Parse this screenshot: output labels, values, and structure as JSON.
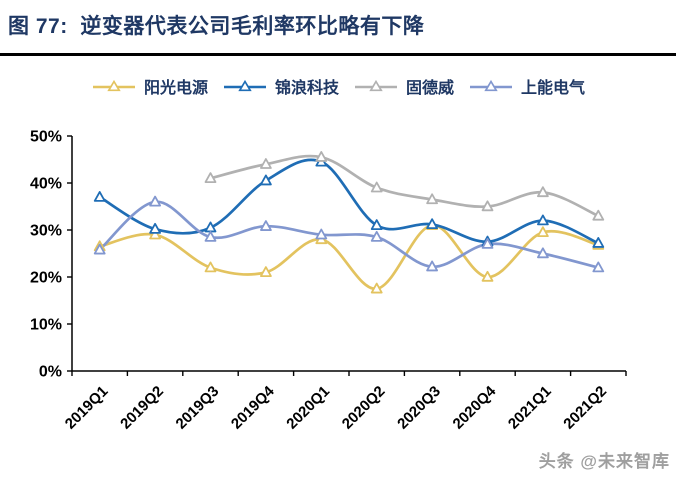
{
  "header": {
    "title": "图 77:  逆变器代表公司毛利率环比略有下降"
  },
  "watermark": "头条 @未来智库",
  "chart_data": {
    "type": "line",
    "title": "逆变器代表公司毛利率环比略有下降",
    "categories": [
      "2019Q1",
      "2019Q2",
      "2019Q3",
      "2019Q4",
      "2020Q1",
      "2020Q2",
      "2020Q3",
      "2020Q4",
      "2021Q1",
      "2021Q2"
    ],
    "series": [
      {
        "name": "阳光电源",
        "color": "#e3c35f",
        "values": [
          26.5,
          29,
          22,
          21,
          28,
          17.5,
          31,
          20,
          29.5,
          26.8
        ]
      },
      {
        "name": "锦浪科技",
        "color": "#1f6db5",
        "values": [
          37,
          30.2,
          30.5,
          40.5,
          44.5,
          31,
          31.2,
          27.5,
          32,
          27.2
        ]
      },
      {
        "name": "固德威",
        "color": "#b1b1b1",
        "values": [
          null,
          null,
          41,
          44,
          45.5,
          39,
          36.5,
          35,
          38,
          33
        ]
      },
      {
        "name": "上能电气",
        "color": "#8297cf",
        "values": [
          25.8,
          36,
          28.5,
          30.8,
          29,
          28.5,
          22.2,
          27,
          25,
          22
        ]
      }
    ],
    "xlabel": "",
    "ylabel": "",
    "ylim": [
      0,
      50
    ],
    "ytick_labels": [
      "0%",
      "10%",
      "20%",
      "30%",
      "40%",
      "50%"
    ],
    "ytick_values": [
      0,
      10,
      20,
      30,
      40,
      50
    ],
    "grid": false,
    "legend_position": "top",
    "marker": "triangle-open",
    "line_style": "smooth",
    "axis_color": "#000000",
    "title_color": "#1f3864"
  }
}
